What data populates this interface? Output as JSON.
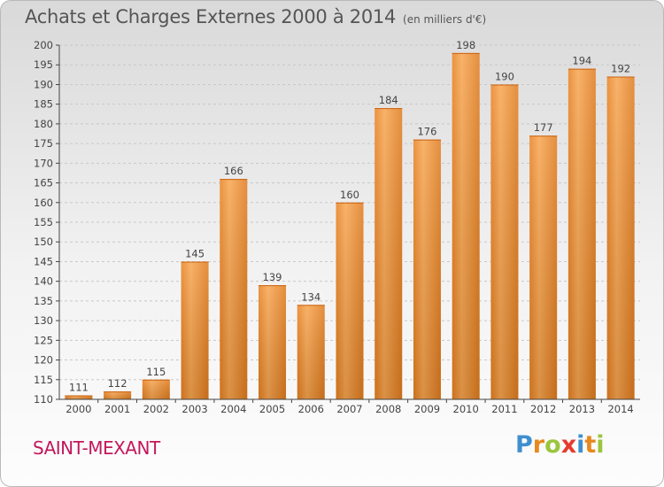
{
  "header": {
    "title": "Achats et Charges Externes 2000 à 2014",
    "subtitle": "(en milliers d'€)"
  },
  "footer": {
    "town": "SAINT-MEXANT",
    "logo_text": "Proxiti"
  },
  "colors": {
    "bar_light": "#f7a24d",
    "bar_dark": "#d06a10",
    "axis": "#444444",
    "gridline": "#c8c8c8",
    "town": "#c2185b"
  },
  "chart_data": {
    "type": "bar",
    "title": "Achats et Charges Externes 2000 à 2014",
    "subtitle": "(en milliers d'€)",
    "categories": [
      "2000",
      "2001",
      "2002",
      "2003",
      "2004",
      "2005",
      "2006",
      "2007",
      "2008",
      "2009",
      "2010",
      "2011",
      "2012",
      "2013",
      "2014"
    ],
    "values": [
      111,
      112,
      115,
      145,
      166,
      139,
      134,
      160,
      184,
      176,
      198,
      190,
      177,
      194,
      192
    ],
    "ylim": [
      110,
      200
    ],
    "yticks": [
      110,
      115,
      120,
      125,
      130,
      135,
      140,
      145,
      150,
      155,
      160,
      165,
      170,
      175,
      180,
      185,
      190,
      195,
      200
    ],
    "grid": true,
    "data_labels": true
  }
}
